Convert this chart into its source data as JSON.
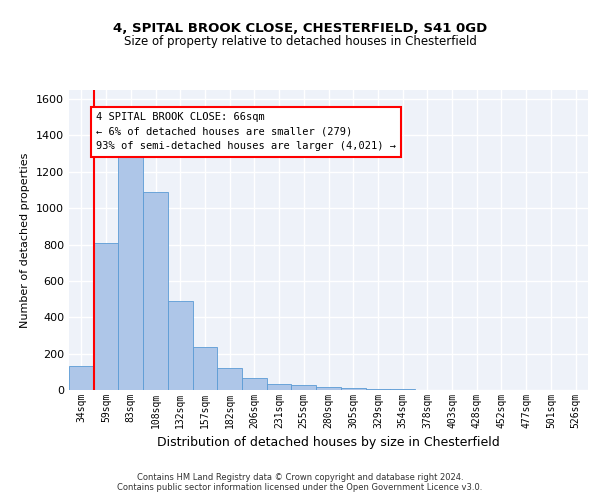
{
  "title1": "4, SPITAL BROOK CLOSE, CHESTERFIELD, S41 0GD",
  "title2": "Size of property relative to detached houses in Chesterfield",
  "xlabel": "Distribution of detached houses by size in Chesterfield",
  "ylabel": "Number of detached properties",
  "bar_labels": [
    "34sqm",
    "59sqm",
    "83sqm",
    "108sqm",
    "132sqm",
    "157sqm",
    "182sqm",
    "206sqm",
    "231sqm",
    "255sqm",
    "280sqm",
    "305sqm",
    "329sqm",
    "354sqm",
    "378sqm",
    "403sqm",
    "428sqm",
    "452sqm",
    "477sqm",
    "501sqm",
    "526sqm"
  ],
  "bar_values": [
    130,
    810,
    1280,
    1090,
    490,
    235,
    120,
    65,
    35,
    25,
    15,
    10,
    5,
    3,
    2,
    1,
    1,
    1,
    1,
    1,
    1
  ],
  "bar_color": "#aec6e8",
  "bar_edge_color": "#5b9bd5",
  "vline_x": 1,
  "vline_color": "#ff0000",
  "annotation_text": "4 SPITAL BROOK CLOSE: 66sqm\n← 6% of detached houses are smaller (279)\n93% of semi-detached houses are larger (4,021) →",
  "annotation_box_color": "#ffffff",
  "annotation_box_edge": "#ff0000",
  "ylim": [
    0,
    1650
  ],
  "yticks": [
    0,
    200,
    400,
    600,
    800,
    1000,
    1200,
    1400,
    1600
  ],
  "footer1": "Contains HM Land Registry data © Crown copyright and database right 2024.",
  "footer2": "Contains public sector information licensed under the Open Government Licence v3.0.",
  "background_color": "#eef2f9",
  "grid_color": "#ffffff",
  "fig_bg": "#ffffff"
}
